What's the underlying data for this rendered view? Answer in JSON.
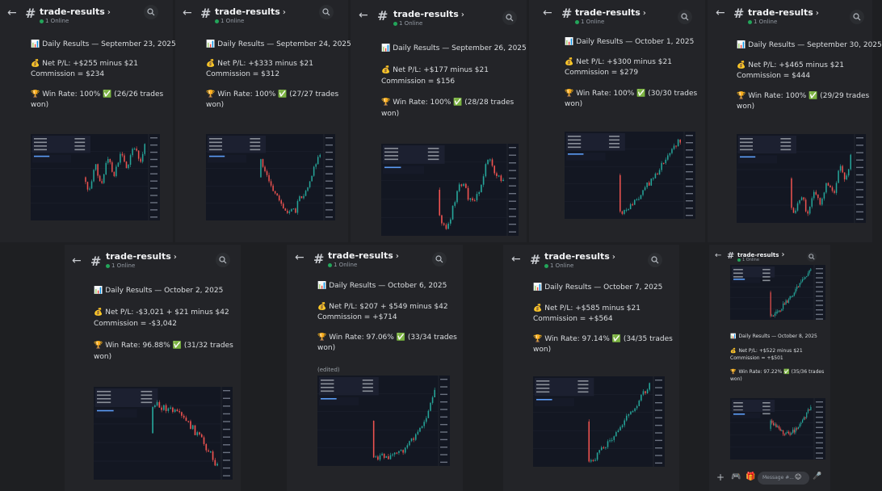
{
  "channel": {
    "name": "trade-results",
    "chevron": "›",
    "online": "1 Online"
  },
  "posts": [
    {
      "title": "Daily Results — September 23, 2025",
      "pl": "Net P/L: +$255 minus $21",
      "comm": "Commission = $234",
      "wr1": "Win Rate: 100%",
      "wr2": "(26/26 trades",
      "wr3": "won)"
    },
    {
      "title": "Daily Results — September 24, 2025",
      "pl": "Net P/L: +$333 minus $21",
      "comm": "Commission = $312",
      "wr1": "Win Rate: 100%",
      "wr2": "(27/27 trades",
      "wr3": "won)"
    },
    {
      "title": "Daily Results — September 26, 2025",
      "pl": "Net P/L: +$177 minus $21",
      "comm": "Commission = $156",
      "wr1": "Win Rate: 100%",
      "wr2": "(28/28 trades",
      "wr3": "won)"
    },
    {
      "title": "Daily Results — October 1, 2025",
      "pl": "Net P/L: +$300 minus $21",
      "comm": "Commission = $279",
      "wr1": "Win Rate: 100%",
      "wr2": "(30/30 trades",
      "wr3": "won)"
    },
    {
      "title": "Daily Results — September 30, 2025",
      "pl": "Net P/L: +$465 minus $21",
      "comm": "Commission = $444",
      "wr1": "Win Rate: 100%",
      "wr2": "(29/29 trades",
      "wr3": "won)"
    },
    {
      "title": "Daily Results — October 2, 2025",
      "pl": "Net P/L: -$3,021 + $21 minus $42",
      "comm": "Commission = -$3,042",
      "wr1": "Win Rate: 96.88%",
      "wr2": "(31/32 trades",
      "wr3": "won)"
    },
    {
      "title": "Daily Results — October 6, 2025",
      "pl": "Net P/L: $207 + $549 minus $42",
      "comm": "Commission = +$714",
      "wr1": "Win Rate: 97.06%",
      "wr2": "(33/34 trades",
      "wr3": "won)",
      "edited": "(edited)"
    },
    {
      "title": "Daily Results — October 7, 2025",
      "pl": "Net P/L: +$585 minus $21",
      "comm": "Commission = +$564",
      "wr1": "Win Rate: 97.14%",
      "wr2": "(34/35 trades",
      "wr3": "won)"
    },
    {
      "title": "Daily Results — October 8, 2025",
      "pl": "Net P/L: +$522 minus $21",
      "comm": "Commission = +$501",
      "wr1": "Win Rate: 97.22%",
      "wr2": "(35/36 trades",
      "wr3": "won)"
    }
  ],
  "chart_labels": {
    "deposit": "Deposit",
    "swap": "Swap",
    "commission": "Commission",
    "balance": "Balance",
    "symbol": "XAUUSD"
  },
  "composer": {
    "placeholder": "Message #..."
  },
  "colors": {
    "up": "#26a69a",
    "down": "#ef5350",
    "bg": "#131722",
    "online": "#23a55a"
  }
}
